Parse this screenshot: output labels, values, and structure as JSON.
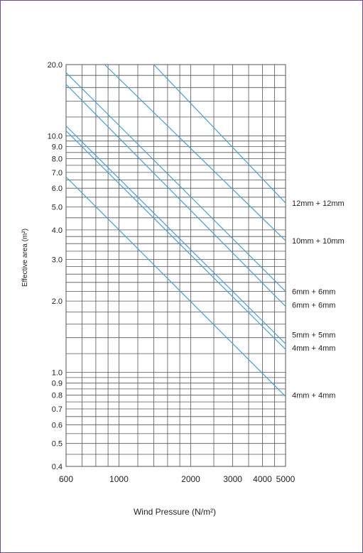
{
  "chart_data": {
    "type": "line",
    "title": "",
    "xlabel": "Wind Pressure (N/m²)",
    "ylabel": "Effective area (m²)",
    "x_scale": "log",
    "y_scale": "log",
    "xlim": [
      600,
      5000
    ],
    "ylim": [
      0.4,
      20
    ],
    "grid": true,
    "x_ticks": [
      600,
      1000,
      2000,
      3000,
      4000,
      5000
    ],
    "x_tick_labels": [
      "600",
      "1000",
      "2000",
      "3000",
      "4000",
      "5000"
    ],
    "y_ticks": [
      0.4,
      0.5,
      0.6,
      0.7,
      0.8,
      0.9,
      1.0,
      2.0,
      3.0,
      4.0,
      5.0,
      6.0,
      7.0,
      8.0,
      9.0,
      10.0,
      20.0
    ],
    "y_tick_labels": [
      "0.4",
      "0.5",
      "0.6",
      "0.7",
      "0.8",
      "0.9",
      "1.0",
      "2.0",
      "3.0",
      "4.0",
      "5.0",
      "6.0",
      "7.0",
      "8.0",
      "9.0",
      "10.0",
      "20.0"
    ],
    "x_gridlines": [
      600,
      700,
      800,
      900,
      1000,
      1200,
      1400,
      1600,
      1800,
      2000,
      2500,
      3000,
      3500,
      4000,
      4500,
      5000
    ],
    "y_gridlines": [
      0.4,
      0.45,
      0.5,
      0.55,
      0.6,
      0.65,
      0.7,
      0.75,
      0.8,
      0.85,
      0.9,
      0.95,
      1.0,
      1.2,
      1.4,
      1.6,
      1.8,
      2.0,
      2.2,
      2.4,
      2.6,
      2.8,
      3.0,
      3.25,
      3.5,
      3.75,
      4.0,
      4.5,
      5.0,
      5.5,
      6.0,
      6.5,
      7.0,
      7.5,
      8.0,
      8.5,
      9.0,
      9.5,
      10.0,
      12,
      14,
      16,
      18,
      20
    ],
    "line_color": "#4a9fd0",
    "grid_color": "#555555",
    "series": [
      {
        "name": "12mm + 12mm",
        "points": [
          [
            1400,
            20.0
          ],
          [
            5000,
            5.2
          ]
        ]
      },
      {
        "name": "10mm + 10mm",
        "points": [
          [
            870,
            20.0
          ],
          [
            5000,
            3.6
          ]
        ]
      },
      {
        "name": "6mm + 6mm",
        "points": [
          [
            600,
            18.5
          ],
          [
            5000,
            2.2
          ]
        ]
      },
      {
        "name": "6mm + 6mm",
        "points": [
          [
            600,
            16.5
          ],
          [
            5000,
            1.9
          ]
        ]
      },
      {
        "name": "5mm + 5mm",
        "points": [
          [
            600,
            11.0
          ],
          [
            5000,
            1.32
          ]
        ]
      },
      {
        "name": "4mm + 4mm",
        "points": [
          [
            600,
            10.5
          ],
          [
            5000,
            1.25
          ]
        ]
      },
      {
        "name": "4mm + 4mm",
        "points": [
          [
            600,
            6.7
          ],
          [
            5000,
            0.79
          ]
        ]
      }
    ],
    "series_labels": [
      {
        "text": "12mm + 12mm",
        "y": 5.2
      },
      {
        "text": "10mm + 10mm",
        "y": 3.6
      },
      {
        "text": "6mm + 6mm",
        "y": 2.2
      },
      {
        "text": "6mm + 6mm",
        "y": 1.93
      },
      {
        "text": "5mm + 5mm",
        "y": 1.44
      },
      {
        "text": "4mm + 4mm",
        "y": 1.27
      },
      {
        "text": "4mm + 4mm",
        "y": 0.8
      }
    ]
  }
}
